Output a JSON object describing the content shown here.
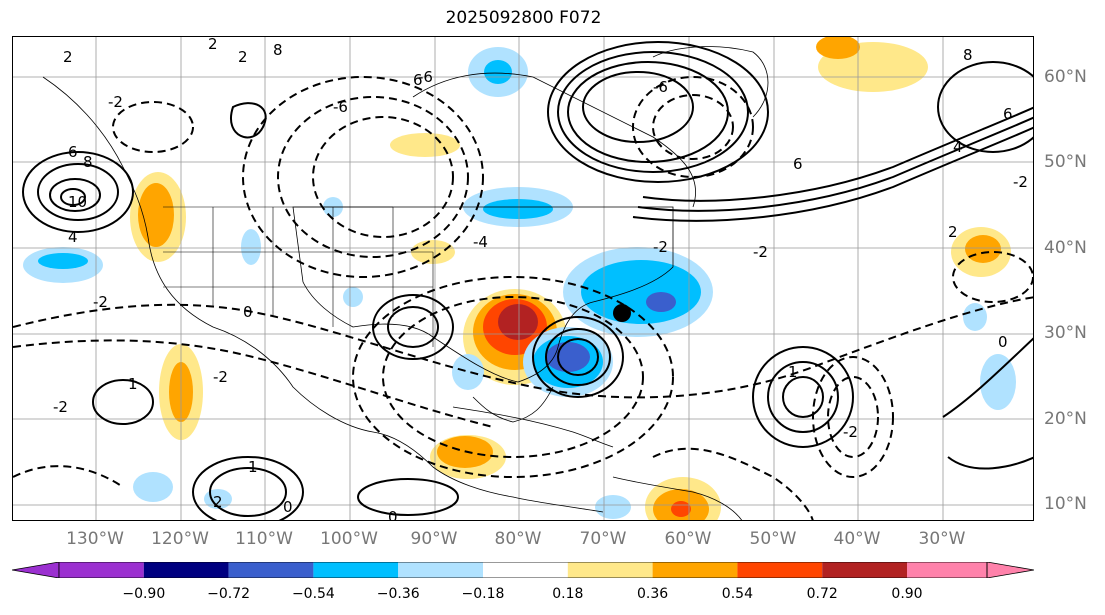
{
  "title": "2025092800 F072",
  "lat_labels": [
    "60°N",
    "50°N",
    "40°N",
    "30°N",
    "20°N",
    "10°N"
  ],
  "lon_labels": [
    "130°W",
    "120°W",
    "110°W",
    "100°W",
    "90°W",
    "80°W",
    "70°W",
    "60°W",
    "50°W",
    "40°W",
    "30°W"
  ],
  "colorbar": {
    "ticks": [
      "−0.90",
      "−0.72",
      "−0.54",
      "−0.36",
      "−0.18",
      "0.18",
      "0.36",
      "0.54",
      "0.72",
      "0.90"
    ],
    "colors": [
      "#9b30d0",
      "#000080",
      "#3a5fcd",
      "#00bfff",
      "#b0e2ff",
      "#ffffff",
      "#ffe88a",
      "#ffa500",
      "#ff4500",
      "#b22222",
      "#ff82ab",
      "#9b30d0",
      "#ff82ab"
    ]
  },
  "contour_labels": {
    "pos": [
      "2",
      "2",
      "2",
      "8",
      "6",
      "8",
      "10",
      "4",
      "4",
      "6",
      "8",
      "6",
      "6",
      "1",
      "0",
      "0",
      "1",
      "1",
      "2",
      "0",
      "0",
      "2"
    ],
    "neg": [
      "-2",
      "-2",
      "-6",
      "-6",
      "-4",
      "-2",
      "-2",
      "-2",
      "-2",
      "-2",
      "-6",
      "-2"
    ]
  },
  "storm_marker": "storm-center"
}
